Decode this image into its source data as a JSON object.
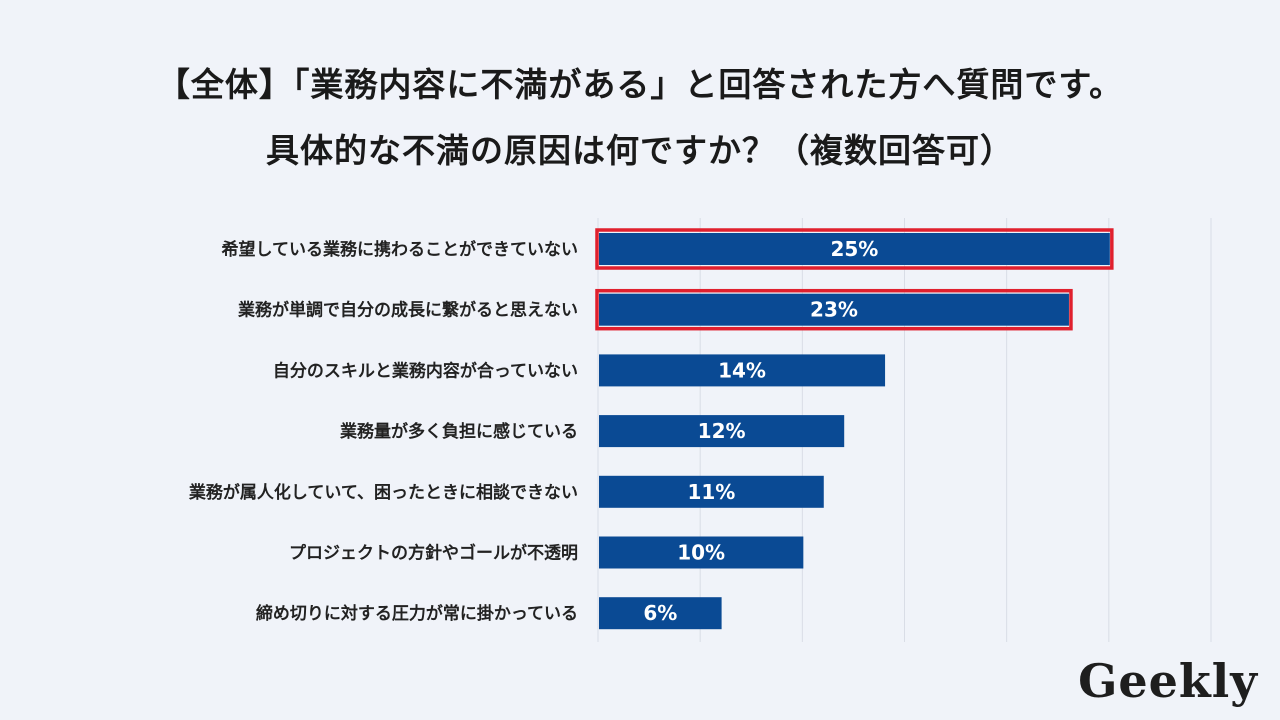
{
  "title_line1": "【全体】「業務内容に不満がある」と回答された方へ質問です。",
  "title_line2": "具体的な不満の原因は何ですか？（複数回答可）",
  "logo": "Geekly",
  "colors": {
    "bar": "#0a4a94",
    "highlight": "#e0202e",
    "grid": "#d9dde6",
    "background": "#f0f3f9"
  },
  "chart_data": {
    "type": "bar",
    "orientation": "horizontal",
    "categories": [
      "希望している業務に携わることができていない",
      "業務が単調で自分の成長に繋がると思えない",
      "自分のスキルと業務内容が合っていない",
      "業務量が多く負担に感じている",
      "業務が属人化していて、困ったときに相談できない",
      "プロジェクトの方針やゴールが不透明",
      "締め切りに対する圧力が常に掛かっている"
    ],
    "values": [
      25,
      23,
      14,
      12,
      11,
      10,
      6
    ],
    "value_labels": [
      "25%",
      "23%",
      "14%",
      "12%",
      "11%",
      "10%",
      "6%"
    ],
    "highlighted": [
      true,
      true,
      false,
      false,
      false,
      false,
      false
    ],
    "xlim": [
      0,
      30
    ],
    "grid": true
  }
}
